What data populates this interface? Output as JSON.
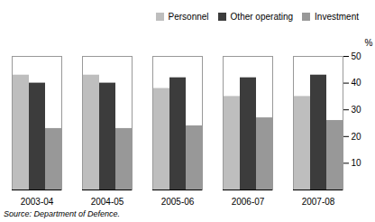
{
  "chart_data": {
    "type": "bar",
    "categories": [
      "2003-04",
      "2004-05",
      "2005-06",
      "2006-07",
      "2007-08"
    ],
    "series": [
      {
        "name": "Personnel",
        "color": "#bebebe",
        "values": [
          43,
          43,
          38,
          35,
          35
        ]
      },
      {
        "name": "Other operating",
        "color": "#3c3c3c",
        "values": [
          40,
          40,
          42,
          42,
          43
        ]
      },
      {
        "name": "Investment",
        "color": "#989898",
        "values": [
          23,
          23,
          24,
          27,
          26
        ]
      }
    ],
    "ylabel": "%",
    "ylim": [
      0,
      50
    ],
    "yticks": [
      10,
      20,
      30,
      40,
      50
    ],
    "legend": "top-right",
    "grid": false,
    "annotations": [
      "Source: Department of Defence."
    ]
  }
}
